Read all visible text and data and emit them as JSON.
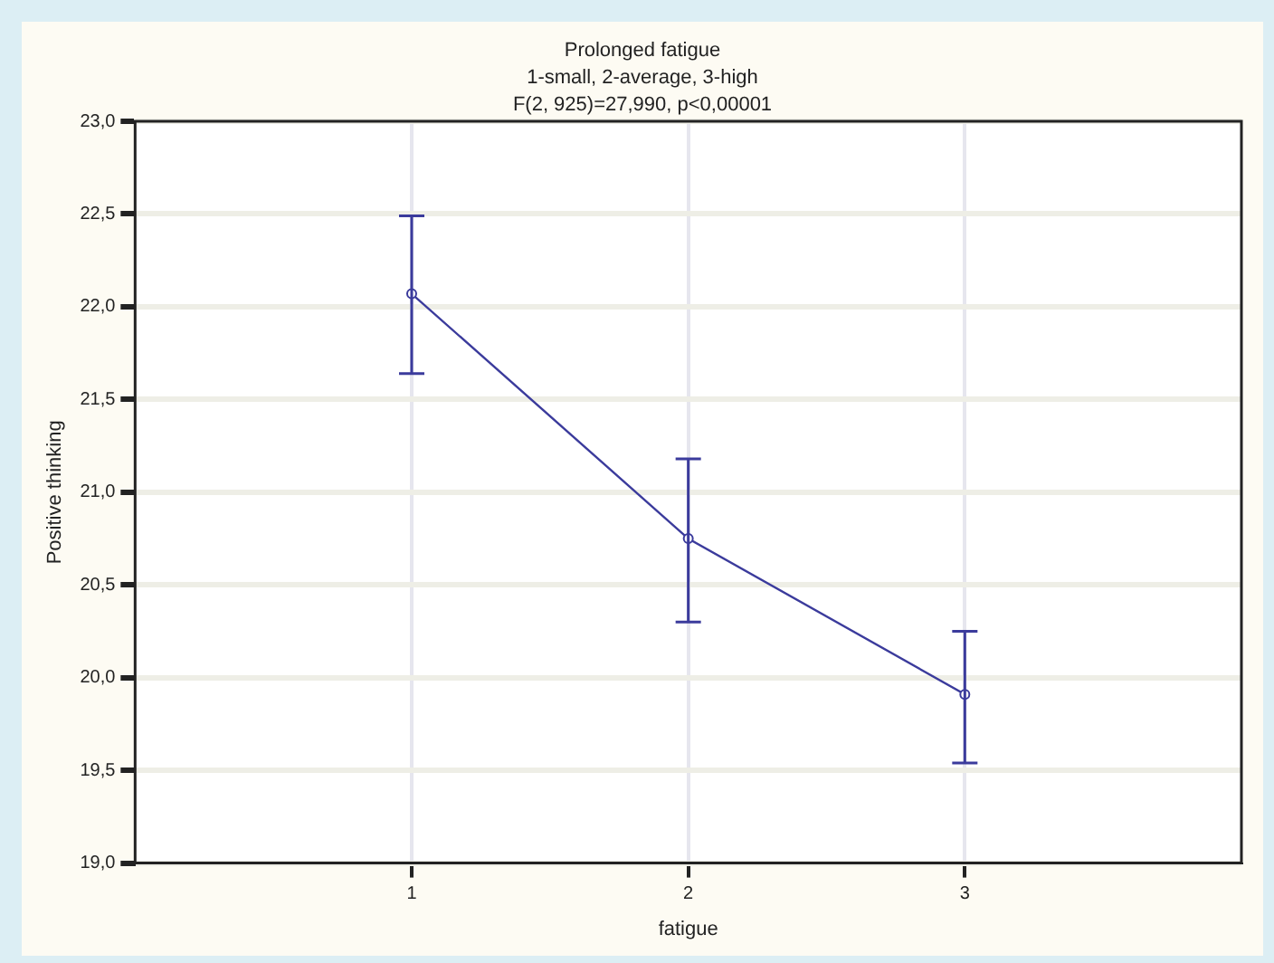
{
  "chart_data": {
    "type": "line",
    "title": "Prolonged fatigue",
    "subtitle": "1-small, 2-average, 3-high",
    "annotations": [
      "F(2, 925)=27,990, p<0,00001"
    ],
    "xlabel": "fatigue",
    "ylabel": "Positive thinking",
    "x": [
      1,
      2,
      3
    ],
    "xlim": [
      0,
      4
    ],
    "xticks": [
      1,
      2,
      3
    ],
    "series": [
      {
        "color": "#3b3b9c",
        "values": [
          22.07,
          20.75,
          19.91
        ],
        "errors": [
          [
            21.64,
            22.49
          ],
          [
            20.3,
            21.18
          ],
          [
            19.54,
            20.25
          ]
        ]
      }
    ],
    "ylim": [
      19,
      23
    ],
    "yticks": [
      {
        "value": 19,
        "label": "19,0"
      },
      {
        "value": 19.5,
        "label": "19,5"
      },
      {
        "value": 20,
        "label": "20,0"
      },
      {
        "value": 20.5,
        "label": "20,5"
      },
      {
        "value": 21,
        "label": "21,0"
      },
      {
        "value": 21.5,
        "label": "21,5"
      },
      {
        "value": 22,
        "label": "22,0"
      },
      {
        "value": 22.5,
        "label": "22,5"
      },
      {
        "value": 23,
        "label": "23,0"
      }
    ],
    "grid": true,
    "marker": "circle",
    "line_style": "solid"
  }
}
